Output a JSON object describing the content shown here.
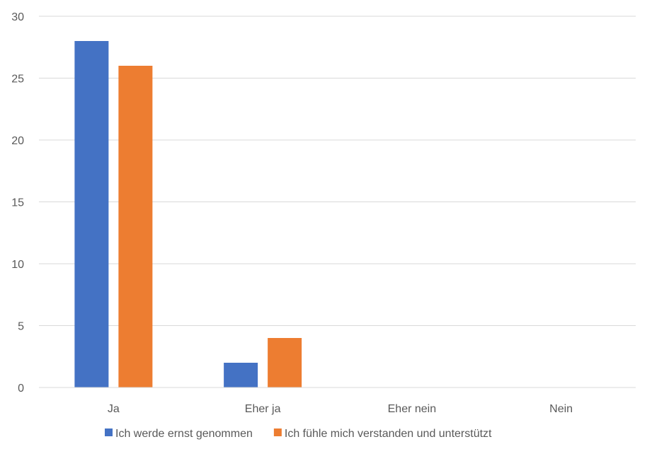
{
  "chart_data": {
    "type": "bar",
    "categories": [
      "Ja",
      "Eher ja",
      "Eher nein",
      "Nein"
    ],
    "series": [
      {
        "name": "Ich werde ernst genommen",
        "values": [
          28,
          2,
          0,
          0
        ],
        "color": "#4472C4"
      },
      {
        "name": "Ich fühle mich verstanden und unterstützt",
        "values": [
          26,
          4,
          0,
          0
        ],
        "color": "#ED7D31"
      }
    ],
    "title": "",
    "xlabel": "",
    "ylabel": "",
    "ylim": [
      0,
      30
    ],
    "yticks": [
      0,
      5,
      10,
      15,
      20,
      25,
      30
    ],
    "grid": true,
    "legend_position": "bottom"
  }
}
